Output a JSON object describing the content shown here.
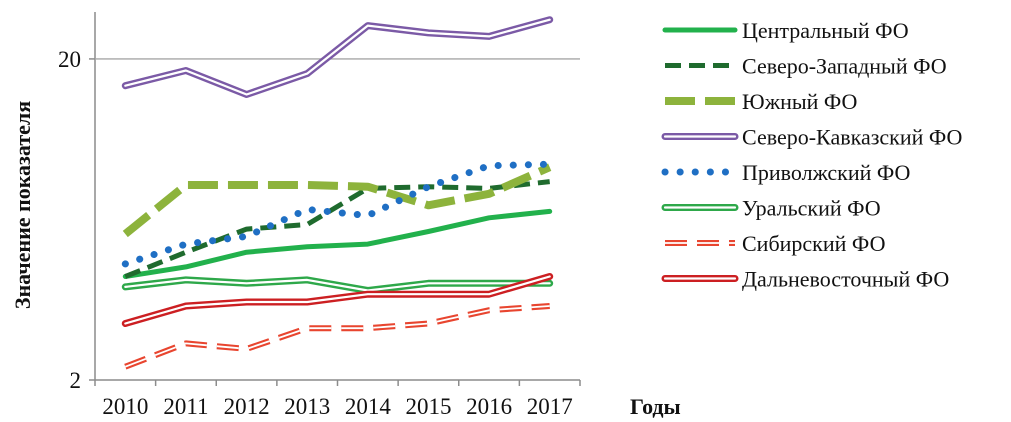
{
  "chart_data": {
    "type": "line",
    "title": "",
    "xlabel": "Годы",
    "ylabel": "Значение показателя",
    "yscale": "log",
    "ylim": [
      2,
      28
    ],
    "yticks": [
      2,
      20
    ],
    "grid": "horizontal line at 20",
    "legend_position": "right",
    "categories": [
      "2010",
      "2011",
      "2012",
      "2013",
      "2014",
      "2015",
      "2016",
      "2017"
    ],
    "series": [
      {
        "name": "Центральный ФО",
        "color": "#22b14c",
        "style": "solid",
        "values": [
          4.2,
          4.5,
          5.0,
          5.2,
          5.3,
          5.8,
          6.4,
          6.7
        ]
      },
      {
        "name": "Северо-Западный ФО",
        "color": "#1f6b2e",
        "style": "dash",
        "values": [
          4.2,
          5.0,
          5.9,
          6.1,
          7.9,
          8.0,
          7.9,
          8.3
        ]
      },
      {
        "name": "Южный ФО",
        "color": "#8db33c",
        "style": "longdash",
        "values": [
          5.7,
          8.1,
          8.1,
          8.1,
          8.0,
          7.0,
          7.6,
          9.2
        ]
      },
      {
        "name": "Северо-Кавказский ФО",
        "color": "#7b5aa6",
        "style": "double",
        "values": [
          16.5,
          18.4,
          15.5,
          18.0,
          25.4,
          24.1,
          23.5,
          26.5
        ]
      },
      {
        "name": "Приволжский ФО",
        "color": "#1f6fc4",
        "style": "dot",
        "values": [
          4.6,
          5.3,
          5.6,
          6.8,
          6.5,
          8.0,
          9.3,
          9.4
        ]
      },
      {
        "name": "Уральский ФО",
        "color": "#2ea84a",
        "style": "double",
        "values": [
          3.9,
          4.1,
          4.0,
          4.1,
          3.8,
          4.0,
          4.0,
          4.0
        ]
      },
      {
        "name": "Сибирский ФО",
        "color": "#e8452f",
        "style": "doubledash",
        "values": [
          2.2,
          2.6,
          2.5,
          2.9,
          2.9,
          3.0,
          3.3,
          3.4
        ]
      },
      {
        "name": "Дальневосточный ФО",
        "color": "#cc1f22",
        "style": "double",
        "values": [
          3.0,
          3.4,
          3.5,
          3.5,
          3.7,
          3.7,
          3.7,
          4.2
        ]
      }
    ]
  }
}
